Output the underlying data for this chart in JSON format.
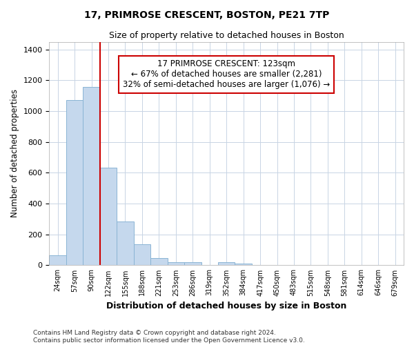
{
  "title1": "17, PRIMROSE CRESCENT, BOSTON, PE21 7TP",
  "title2": "Size of property relative to detached houses in Boston",
  "xlabel": "Distribution of detached houses by size in Boston",
  "ylabel": "Number of detached properties",
  "bin_labels": [
    "24sqm",
    "57sqm",
    "90sqm",
    "122sqm",
    "155sqm",
    "188sqm",
    "221sqm",
    "253sqm",
    "286sqm",
    "319sqm",
    "352sqm",
    "384sqm",
    "417sqm",
    "450sqm",
    "483sqm",
    "515sqm",
    "548sqm",
    "581sqm",
    "614sqm",
    "646sqm",
    "679sqm"
  ],
  "bin_values": [
    65,
    1070,
    1155,
    635,
    285,
    135,
    47,
    20,
    20,
    0,
    20,
    10,
    0,
    0,
    0,
    0,
    0,
    0,
    0,
    0,
    0
  ],
  "property_label": "17 PRIMROSE CRESCENT: 123sqm",
  "annotation_line1": "← 67% of detached houses are smaller (2,281)",
  "annotation_line2": "32% of semi-detached houses are larger (1,076) →",
  "bar_color": "#c5d8ed",
  "bar_edge_color": "#8ab4d4",
  "vline_color": "#cc0000",
  "annotation_box_edge_color": "#cc0000",
  "grid_color": "#c8d4e4",
  "background_color": "#ffffff",
  "ylim": [
    0,
    1450
  ],
  "yticks": [
    0,
    200,
    400,
    600,
    800,
    1000,
    1200,
    1400
  ],
  "vline_x": 3.0,
  "footnote1": "Contains HM Land Registry data © Crown copyright and database right 2024.",
  "footnote2": "Contains public sector information licensed under the Open Government Licence v3.0."
}
